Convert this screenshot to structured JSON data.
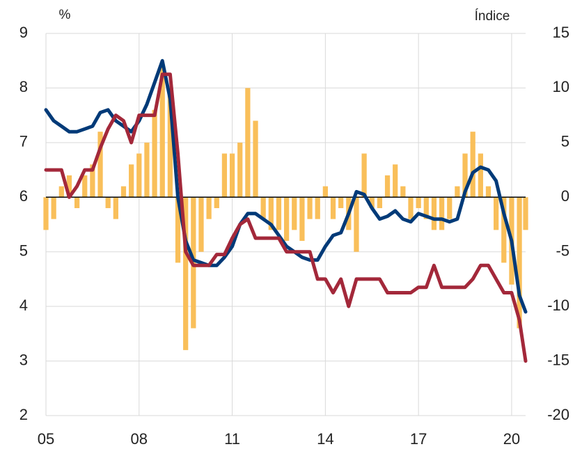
{
  "chart_data": {
    "type": "bar-line",
    "ylabel": "%",
    "y2label": "Índice",
    "x": [
      2005,
      2005.25,
      2005.5,
      2005.75,
      2006,
      2006.25,
      2006.5,
      2006.75,
      2007,
      2007.25,
      2007.5,
      2007.75,
      2008,
      2008.25,
      2008.5,
      2008.75,
      2009,
      2009.25,
      2009.5,
      2009.75,
      2010,
      2010.25,
      2010.5,
      2010.75,
      2011,
      2011.25,
      2011.5,
      2011.75,
      2012,
      2012.25,
      2012.5,
      2012.75,
      2013,
      2013.25,
      2013.5,
      2013.75,
      2014,
      2014.25,
      2014.5,
      2014.75,
      2015,
      2015.25,
      2015.5,
      2015.75,
      2016,
      2016.25,
      2016.5,
      2016.75,
      2017,
      2017.25,
      2017.5,
      2017.75,
      2018,
      2018.25,
      2018.5,
      2018.75,
      2019,
      2019.25,
      2019.5,
      2019.75,
      2020,
      2020.25,
      2020.45
    ],
    "series": [
      {
        "color": "#f9bf5a",
        "axis": "y2",
        "kind": "bar",
        "values": [
          -3,
          -2,
          1,
          2,
          -1,
          2,
          3,
          6,
          -1,
          -2,
          1,
          3,
          4,
          5,
          8,
          12,
          10,
          -6,
          -14,
          -12,
          -5,
          -2,
          -1,
          4,
          4,
          5,
          10,
          7,
          -2,
          -3,
          -3,
          -4,
          -3,
          -4,
          -2,
          -2,
          1,
          -2,
          -1,
          -3,
          -5,
          4,
          -1,
          -1,
          2,
          3,
          1,
          -2,
          -1,
          -2,
          -3,
          -3,
          -2,
          1,
          4,
          6,
          4,
          1,
          -3,
          -6,
          -8,
          -12,
          -3
        ]
      },
      {
        "color": "#003a78",
        "axis": "y",
        "kind": "line",
        "values": [
          7.6,
          7.4,
          7.3,
          7.2,
          7.2,
          7.25,
          7.3,
          7.55,
          7.6,
          7.4,
          7.3,
          7.2,
          7.4,
          7.7,
          8.1,
          8.5,
          7.8,
          6.0,
          5.2,
          4.85,
          4.8,
          4.75,
          4.75,
          4.9,
          5.1,
          5.5,
          5.7,
          5.7,
          5.6,
          5.5,
          5.3,
          5.1,
          5.0,
          4.9,
          4.85,
          4.85,
          5.1,
          5.3,
          5.35,
          5.7,
          6.1,
          6.05,
          5.8,
          5.6,
          5.65,
          5.75,
          5.6,
          5.55,
          5.7,
          5.65,
          5.6,
          5.6,
          5.55,
          5.6,
          6.1,
          6.45,
          6.55,
          6.5,
          6.3,
          5.7,
          5.2,
          4.2,
          3.9
        ]
      },
      {
        "color": "#a3283a",
        "axis": "y",
        "kind": "line",
        "values": [
          6.5,
          6.5,
          6.5,
          6.0,
          6.2,
          6.5,
          6.5,
          6.9,
          7.25,
          7.5,
          7.4,
          7.0,
          7.5,
          7.5,
          7.5,
          8.25,
          8.25,
          6.8,
          5.0,
          4.75,
          4.75,
          4.75,
          4.95,
          4.95,
          5.25,
          5.5,
          5.6,
          5.25,
          5.25,
          5.25,
          5.25,
          5.0,
          5.0,
          5.0,
          5.0,
          4.5,
          4.5,
          4.25,
          4.5,
          4.0,
          4.5,
          4.5,
          4.5,
          4.5,
          4.25,
          4.25,
          4.25,
          4.25,
          4.35,
          4.35,
          4.75,
          4.35,
          4.35,
          4.35,
          4.35,
          4.5,
          4.75,
          4.75,
          4.5,
          4.25,
          4.25,
          3.75,
          3.0
        ]
      }
    ],
    "xlim": [
      2005,
      2020.45
    ],
    "xticks": [
      {
        "value": 2005,
        "label": "05"
      },
      {
        "value": 2008,
        "label": "08"
      },
      {
        "value": 2011,
        "label": "11"
      },
      {
        "value": 2014,
        "label": "14"
      },
      {
        "value": 2017,
        "label": "17"
      },
      {
        "value": 2020,
        "label": "20"
      }
    ],
    "ylim": [
      2,
      9
    ],
    "yticks": [
      2,
      3,
      4,
      5,
      6,
      7,
      8,
      9
    ],
    "y2lim": [
      -20,
      15
    ],
    "y2ticks": [
      -20,
      -15,
      -10,
      -5,
      0,
      5,
      10,
      15
    ],
    "grid": true
  }
}
